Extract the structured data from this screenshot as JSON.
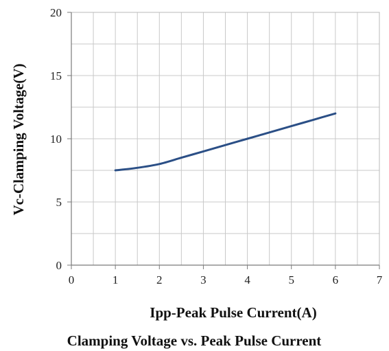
{
  "chart_data": {
    "type": "line",
    "title": "Clamping Voltage vs. Peak Pulse Current",
    "xlabel": "Ipp-Peak Pulse Current(A)",
    "ylabel": "Vc-Clamping Voltage(V)",
    "xlim": [
      0,
      7
    ],
    "ylim": [
      0,
      20
    ],
    "x_ticks": [
      "0",
      "1",
      "2",
      "3",
      "4",
      "5",
      "6",
      "7"
    ],
    "y_ticks": [
      "0",
      "5",
      "10",
      "15",
      "20"
    ],
    "grid": true,
    "legend": "none",
    "series": [
      {
        "color": "#2b4f86",
        "x": [
          1,
          1.5,
          2,
          2.5,
          3,
          3.5,
          4,
          4.5,
          5,
          5.5,
          6
        ],
        "y": [
          7.5,
          7.7,
          8.0,
          8.5,
          9.0,
          9.5,
          10.0,
          10.5,
          11.0,
          11.5,
          12.0
        ]
      }
    ]
  }
}
